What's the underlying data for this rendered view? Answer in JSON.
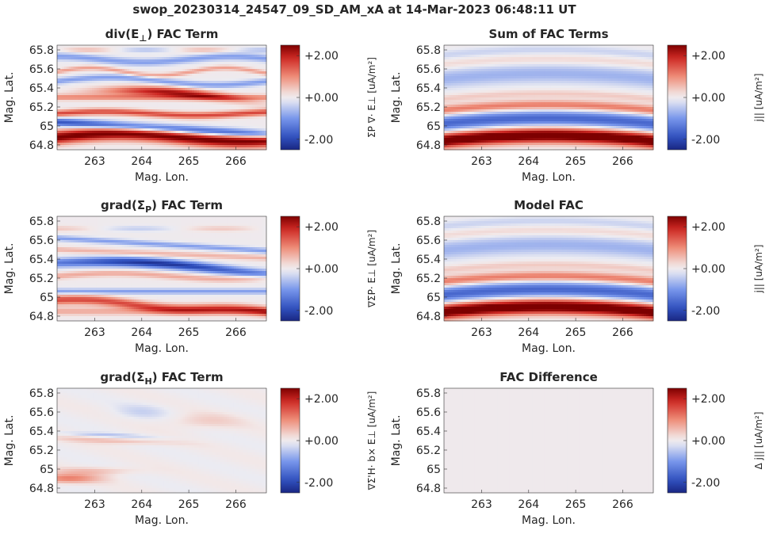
{
  "figure": {
    "title": "swop_20230314_24547_09_SD_AM_xA at 14-Mar-2023 06:48:11 UT"
  },
  "chart_data": [
    {
      "type": "heatmap",
      "title": "div(E⊥) FAC Term",
      "title_base": "div(E",
      "title_sub": "⊥",
      "title_tail": ") FAC Term",
      "xlabel": "Mag. Lon.",
      "ylabel": "Mag. Lat.",
      "xticks": [
        263,
        264,
        265,
        266
      ],
      "yticks": [
        "65.8",
        "65.6",
        "65.4",
        "65.2",
        "65",
        "64.8"
      ],
      "xlim": [
        262.2,
        266.65
      ],
      "ylim": [
        64.75,
        65.85
      ],
      "clim": [
        -2.5,
        2.5
      ],
      "colorbar_ticks": [
        "+2.00",
        "+0.00",
        "-2.00"
      ],
      "colorbar_label": "ΣP ∇· E⊥ [uA/m²]",
      "pattern": "divE"
    },
    {
      "type": "heatmap",
      "title": "Sum of FAC Terms",
      "title_base": "Sum of FAC Terms",
      "title_sub": "",
      "title_tail": "",
      "xlabel": "Mag. Lon.",
      "ylabel": "Mag. Lat.",
      "xticks": [
        263,
        264,
        265,
        266
      ],
      "yticks": [
        "65.8",
        "65.6",
        "65.4",
        "65.2",
        "65",
        "64.8"
      ],
      "xlim": [
        262.2,
        266.65
      ],
      "ylim": [
        64.75,
        65.85
      ],
      "clim": [
        -2.5,
        2.5
      ],
      "colorbar_ticks": [
        "+2.00",
        "+0.00",
        "-2.00"
      ],
      "colorbar_label": "j|| [uA/m²]",
      "pattern": "model"
    },
    {
      "type": "heatmap",
      "title": "grad(ΣP) FAC Term",
      "title_base": "grad(Σ",
      "title_sub": "P",
      "title_tail": ") FAC Term",
      "xlabel": "Mag. Lon.",
      "ylabel": "Mag. Lat.",
      "xticks": [
        263,
        264,
        265,
        266
      ],
      "yticks": [
        "65.8",
        "65.6",
        "65.4",
        "65.2",
        "65",
        "64.8"
      ],
      "xlim": [
        262.2,
        266.65
      ],
      "ylim": [
        64.75,
        65.85
      ],
      "clim": [
        -2.5,
        2.5
      ],
      "colorbar_ticks": [
        "+2.00",
        "+0.00",
        "-2.00"
      ],
      "colorbar_label": "∇ΣP· E⊥ [uA/m²]",
      "pattern": "gradP"
    },
    {
      "type": "heatmap",
      "title": "Model FAC",
      "title_base": "Model FAC",
      "title_sub": "",
      "title_tail": "",
      "xlabel": "Mag. Lon.",
      "ylabel": "Mag. Lat.",
      "xticks": [
        263,
        264,
        265,
        266
      ],
      "yticks": [
        "65.8",
        "65.6",
        "65.4",
        "65.2",
        "65",
        "64.8"
      ],
      "xlim": [
        262.2,
        266.65
      ],
      "ylim": [
        64.75,
        65.85
      ],
      "clim": [
        -2.5,
        2.5
      ],
      "colorbar_ticks": [
        "+2.00",
        "+0.00",
        "-2.00"
      ],
      "colorbar_label": "j|| [uA/m²]",
      "pattern": "model"
    },
    {
      "type": "heatmap",
      "title": "grad(ΣH) FAC Term",
      "title_base": "grad(Σ",
      "title_sub": "H",
      "title_tail": ") FAC Term",
      "xlabel": "Mag. Lon.",
      "ylabel": "Mag. Lat.",
      "xticks": [
        263,
        264,
        265,
        266
      ],
      "yticks": [
        "65.8",
        "65.6",
        "65.4",
        "65.2",
        "65",
        "64.8"
      ],
      "xlim": [
        262.2,
        266.65
      ],
      "ylim": [
        64.75,
        65.85
      ],
      "clim": [
        -2.5,
        2.5
      ],
      "colorbar_ticks": [
        "+2.00",
        "+0.00",
        "-2.00"
      ],
      "colorbar_label": "∇Σ'H· b× E⊥ [uA/m²]",
      "pattern": "gradH"
    },
    {
      "type": "heatmap",
      "title": "FAC Difference",
      "title_base": "FAC Difference",
      "title_sub": "",
      "title_tail": "",
      "xlabel": "Mag. Lon.",
      "ylabel": "Mag. Lat.",
      "xticks": [
        263,
        264,
        265,
        266
      ],
      "yticks": [
        "65.8",
        "65.6",
        "65.4",
        "65.2",
        "65",
        "64.8"
      ],
      "xlim": [
        262.2,
        266.65
      ],
      "ylim": [
        64.75,
        65.85
      ],
      "clim": [
        -2.5,
        2.5
      ],
      "colorbar_ticks": [
        "+2.00",
        "+0.00",
        "-2.00"
      ],
      "colorbar_label": "Δ j|| [uA/m²]",
      "pattern": "zero"
    }
  ]
}
